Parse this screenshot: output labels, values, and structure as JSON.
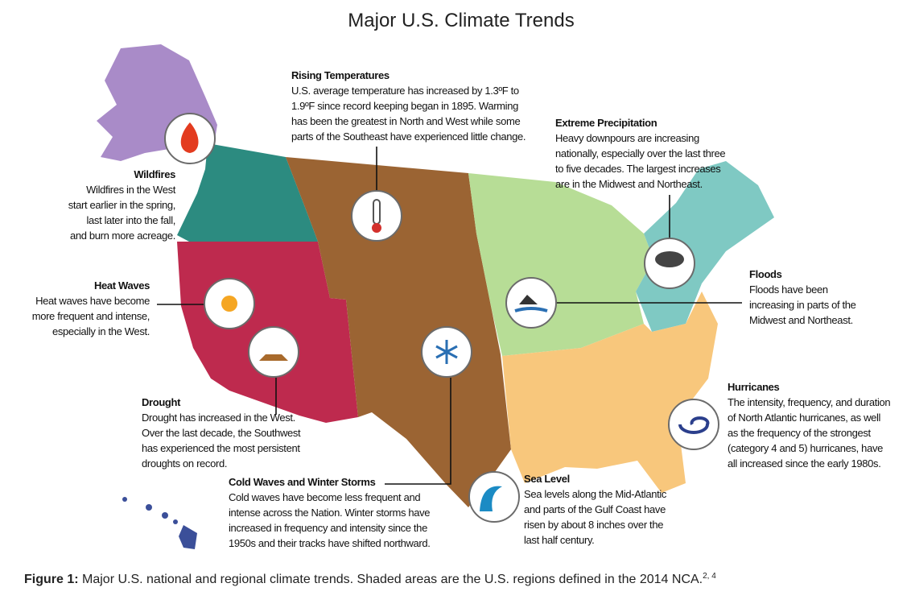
{
  "header": {
    "title": "Major U.S. Climate Trends"
  },
  "callouts": [
    {
      "heading": "Rising Temperatures",
      "lines": [
        "U.S. average temperature has increased by 1.3ºF to",
        "1.9ºF since record keeping began in 1895. Warming",
        "has been the greatest in North and West while some",
        "parts of the Southeast have experienced little change."
      ]
    },
    {
      "heading": "Extreme Precipitation",
      "lines": [
        "Heavy downpours are increasing",
        "nationally, especially over the last three",
        "to five decades. The largest increases",
        "are in the Midwest and Northeast."
      ]
    },
    {
      "heading": "Wildfires",
      "lines": [
        "Wildfires in the West",
        "start earlier in the spring,",
        "last later into the fall,",
        "and burn more acreage."
      ]
    },
    {
      "heading": "Heat Waves",
      "lines": [
        "Heat waves have become",
        "more frequent and intense,",
        "especially in the West."
      ]
    },
    {
      "heading": "Floods",
      "lines": [
        "Floods have been",
        "increasing in parts of the",
        "Midwest and Northeast."
      ]
    },
    {
      "heading": "Drought",
      "lines": [
        "Drought has increased in the West.",
        "Over the last decade, the Southwest",
        "has experienced the most persistent",
        "droughts on record."
      ]
    },
    {
      "heading": "Hurricanes",
      "lines": [
        "The intensity, frequency, and duration",
        "of North Atlantic hurricanes, as well",
        "as the frequency of the strongest",
        "(category 4 and 5) hurricanes, have",
        "all increased since the early 1980s."
      ]
    },
    {
      "heading": "Cold Waves and Winter Storms",
      "lines": [
        "Cold waves have become less frequent and",
        "intense across the Nation. Winter storms have",
        "increased in frequency and intensity since the",
        "1950s and their tracks have shifted northward."
      ]
    },
    {
      "heading": "Sea Level",
      "lines": [
        "Sea levels along the Mid-Atlantic",
        "and parts of the Gulf Coast have",
        "risen by about 8 inches over the",
        "last half century."
      ]
    }
  ],
  "caption": {
    "label": "Figure 1:",
    "text": " Major U.S. national and regional climate trends. Shaded areas are the U.S. regions defined in the 2014 NCA.",
    "refs": "2, 4"
  }
}
